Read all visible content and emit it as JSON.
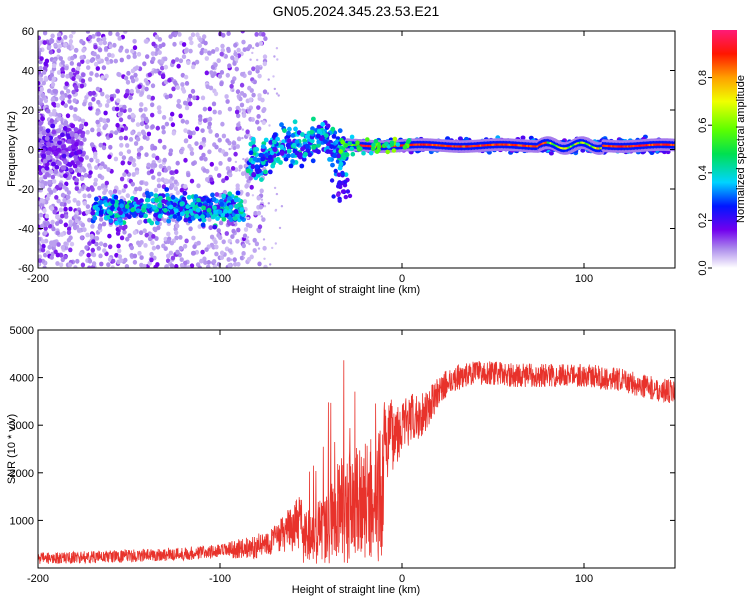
{
  "title": "GN05.2024.345.23.53.E21",
  "chart_data": [
    {
      "type": "heatmap",
      "xlabel": "Height of straight line (km)",
      "ylabel": "Frequency (Hz)",
      "xlim": [
        -200,
        150
      ],
      "ylim": [
        -60,
        60
      ],
      "x_ticks": [
        -200,
        -100,
        0,
        100
      ],
      "y_ticks": [
        -60,
        -40,
        -20,
        0,
        20,
        40,
        60
      ],
      "colorbar": {
        "label": "Normalized spectral amplitude",
        "range": [
          0,
          1
        ],
        "ticks": [
          0.0,
          0.2,
          0.4,
          0.6,
          0.8
        ]
      },
      "ridge": [
        {
          "x_start": -200,
          "x_end": -175,
          "freq": 0,
          "amplitude": 0.15
        },
        {
          "x_start": -170,
          "x_end": -87,
          "freq": -30,
          "amplitude": 0.35
        },
        {
          "x_start": -85,
          "x_end": -30,
          "freq": 0,
          "amplitude": 0.35
        },
        {
          "x_start": -30,
          "x_end": 150,
          "freq": 2,
          "amplitude": 0.9
        }
      ]
    },
    {
      "type": "line",
      "xlabel": "Height of straight line (km)",
      "ylabel": "SNR (10 * v/v)",
      "xlim": [
        -200,
        150
      ],
      "ylim": [
        0,
        5000
      ],
      "x_ticks": [
        -200,
        -100,
        0,
        100
      ],
      "y_ticks": [
        1000,
        2000,
        3000,
        4000,
        5000
      ],
      "color": "#e8322b",
      "envelope": {
        "x": [
          -200,
          -150,
          -120,
          -100,
          -80,
          -70,
          -60,
          -50,
          -40,
          -35,
          -30,
          -25,
          -20,
          -15,
          -10,
          -5,
          0,
          5,
          10,
          15,
          20,
          25,
          30,
          40,
          50,
          60,
          70,
          80,
          90,
          100,
          110,
          120,
          130,
          140,
          150
        ],
        "y": [
          200,
          250,
          300,
          350,
          450,
          600,
          850,
          1100,
          1500,
          2000,
          2100,
          2200,
          2300,
          2400,
          2600,
          2800,
          3000,
          3100,
          3200,
          3400,
          3700,
          3900,
          4000,
          4100,
          4100,
          4050,
          4050,
          4050,
          4050,
          4050,
          4000,
          3950,
          3850,
          3750,
          3700
        ]
      },
      "noise_amplitude": {
        "x": [
          -200,
          -100,
          -70,
          -50,
          -40,
          -30,
          -20,
          -10,
          0,
          10,
          20,
          40,
          100,
          150
        ],
        "y": [
          120,
          150,
          300,
          700,
          1400,
          1800,
          1600,
          900,
          600,
          500,
          300,
          250,
          250,
          250
        ]
      }
    }
  ]
}
